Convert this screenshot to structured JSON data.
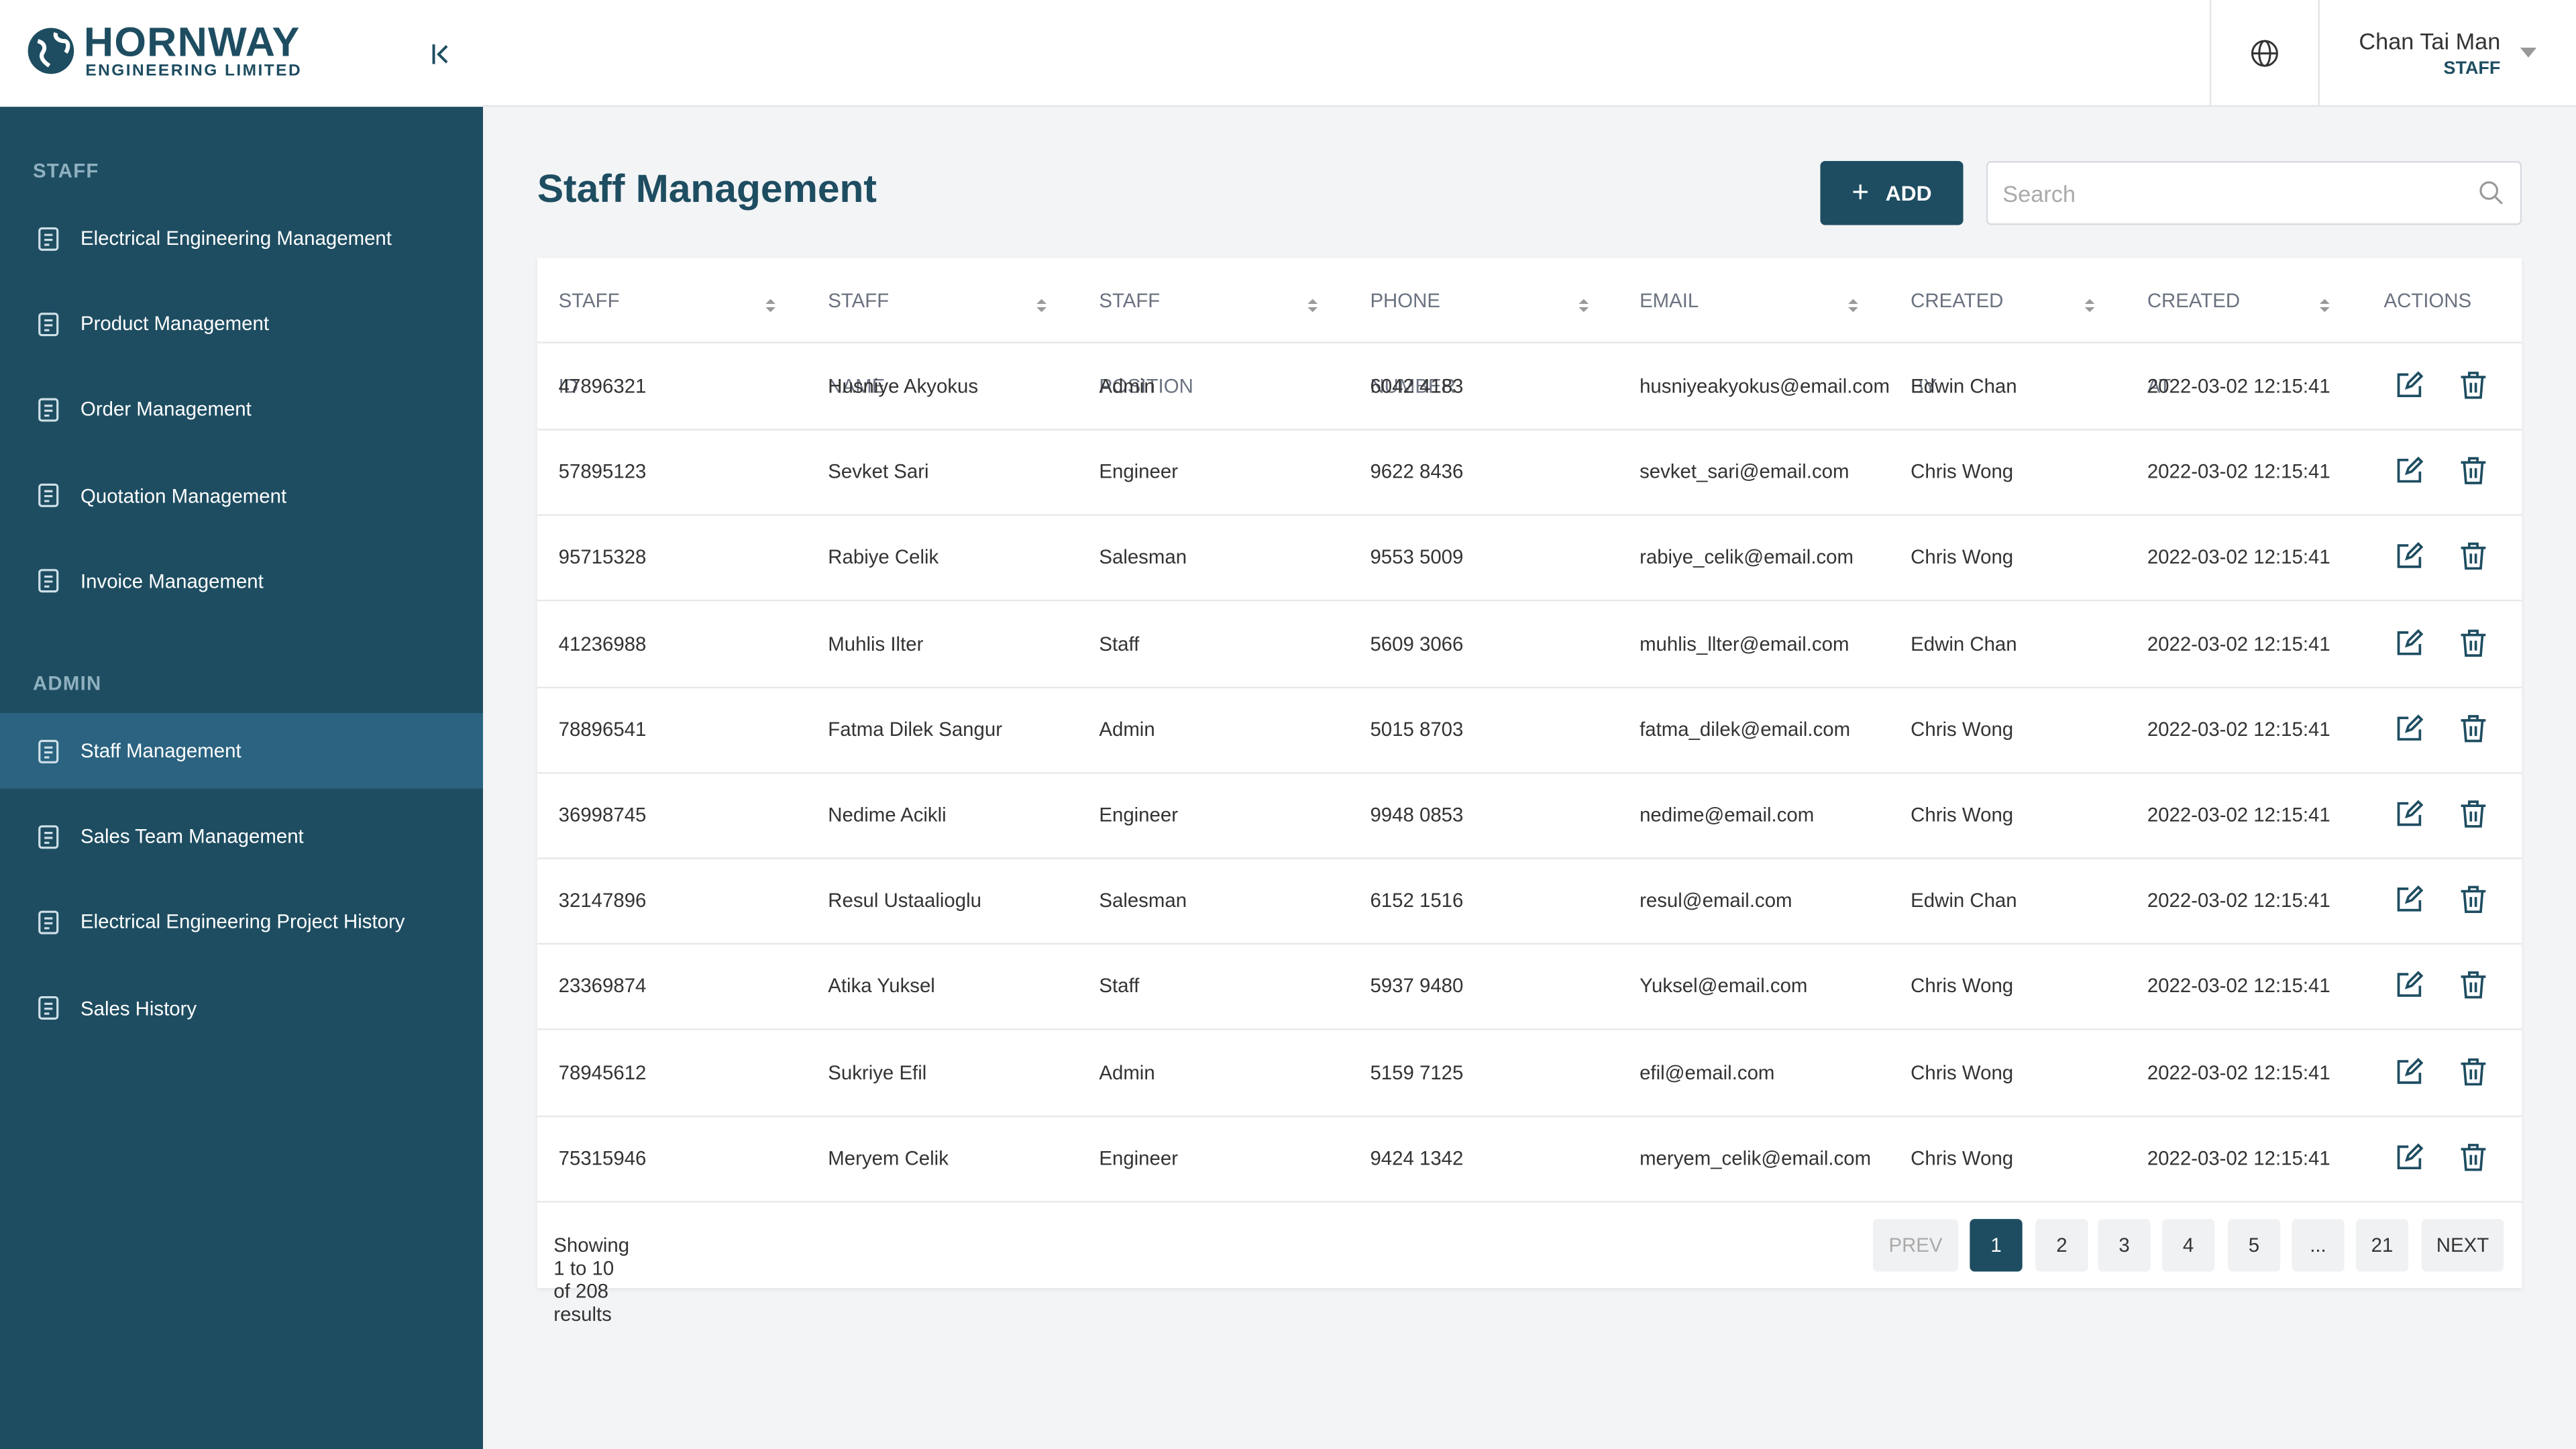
{
  "header": {
    "logo_name": "HORNWAY",
    "logo_sub": "ENGINEERING LIMITED",
    "user_name": "Chan Tai Man",
    "user_role": "STAFF"
  },
  "sidebar": {
    "sections": [
      {
        "title": "STAFF",
        "items": [
          "Electrical Engineering Management",
          "Product Management",
          "Order Management",
          "Quotation Management",
          "Invoice Management"
        ]
      },
      {
        "title": "ADMIN",
        "items": [
          "Staff Management",
          "Sales Team Management",
          "Electrical Engineering Project History",
          "Sales History"
        ]
      }
    ]
  },
  "page": {
    "title": "Staff Management",
    "add_button": "ADD",
    "search_placeholder": "Search"
  },
  "table": {
    "columns": [
      "STAFF ID",
      "STAFF NAME",
      "STAFF POSITION",
      "PHONE NUMBER",
      "EMAIL",
      "CREATED BY",
      "CREATED AT",
      "ACTIONS"
    ],
    "rows": [
      [
        "47896321",
        "Husniye Akyokus",
        "Admin",
        "6042 4183",
        "husniyeakyokus@email.com",
        "Edwin Chan",
        "2022-03-02 12:15:41"
      ],
      [
        "57895123",
        "Sevket Sari",
        "Engineer",
        "9622 8436",
        "sevket_sari@email.com",
        "Chris Wong",
        "2022-03-02 12:15:41"
      ],
      [
        "95715328",
        "Rabiye Celik",
        "Salesman",
        "9553 5009",
        "rabiye_celik@email.com",
        "Chris Wong",
        "2022-03-02 12:15:41"
      ],
      [
        "41236988",
        "Muhlis Ilter",
        "Staff",
        "5609 3066",
        "muhlis_llter@email.com",
        "Edwin Chan",
        "2022-03-02 12:15:41"
      ],
      [
        "78896541",
        "Fatma Dilek Sangur",
        "Admin",
        "5015 8703",
        "fatma_dilek@email.com",
        "Chris Wong",
        "2022-03-02 12:15:41"
      ],
      [
        "36998745",
        "Nedime Acikli",
        "Engineer",
        "9948 0853",
        "nedime@email.com",
        "Chris Wong",
        "2022-03-02 12:15:41"
      ],
      [
        "32147896",
        "Resul Ustaalioglu",
        "Salesman",
        "6152 1516",
        "resul@email.com",
        "Edwin Chan",
        "2022-03-02 12:15:41"
      ],
      [
        "23369874",
        "Atika Yuksel",
        "Staff",
        "5937 9480",
        "Yuksel@email.com",
        "Chris Wong",
        "2022-03-02 12:15:41"
      ],
      [
        "78945612",
        "Sukriye Efil",
        "Admin",
        "5159 7125",
        "efil@email.com",
        "Chris Wong",
        "2022-03-02 12:15:41"
      ],
      [
        "75315946",
        "Meryem Celik",
        "Engineer",
        "9424 1342",
        "meryem_celik@email.com",
        "Chris Wong",
        "2022-03-02 12:15:41"
      ]
    ]
  },
  "footer": {
    "summary": "Showing 1 to 10 of 208 results",
    "pagination": [
      "PREV",
      "1",
      "2",
      "3",
      "4",
      "5",
      "...",
      "21",
      "NEXT"
    ]
  }
}
